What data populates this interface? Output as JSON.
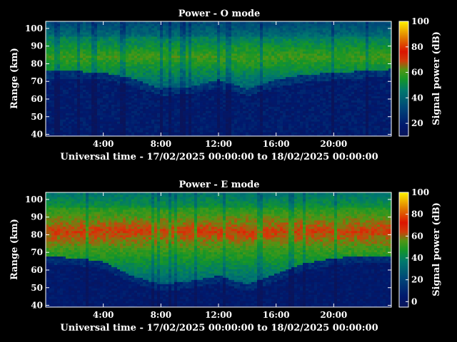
{
  "chart_data": [
    {
      "type": "heatmap",
      "title": "Power - O mode",
      "xlabel": "Universal time - 17/02/2025 00:00:00 to 18/02/2025 00:00:00",
      "ylabel": "Range (km)",
      "xlim_hours": [
        0,
        24
      ],
      "ylim": [
        39,
        104
      ],
      "x_ticks": [
        {
          "value": 4,
          "label": "4:00"
        },
        {
          "value": 8,
          "label": "8:00"
        },
        {
          "value": 12,
          "label": "12:00"
        },
        {
          "value": 16,
          "label": "16:00"
        },
        {
          "value": 20,
          "label": "20:00"
        }
      ],
      "y_ticks": [
        40,
        50,
        60,
        70,
        80,
        90,
        100
      ],
      "colorbar": {
        "label": "Signal power (dB)",
        "range": [
          10,
          100
        ],
        "ticks": [
          20,
          40,
          60,
          80,
          100
        ]
      },
      "lower_edge_km": [
        {
          "t": 0,
          "km": 76
        },
        {
          "t": 2,
          "km": 76
        },
        {
          "t": 4,
          "km": 75
        },
        {
          "t": 6,
          "km": 72
        },
        {
          "t": 8,
          "km": 66
        },
        {
          "t": 10,
          "km": 67
        },
        {
          "t": 12,
          "km": 71
        },
        {
          "t": 14,
          "km": 66
        },
        {
          "t": 16,
          "km": 71
        },
        {
          "t": 18,
          "km": 74
        },
        {
          "t": 20,
          "km": 75
        },
        {
          "t": 22,
          "km": 76
        },
        {
          "t": 24,
          "km": 77
        }
      ],
      "peak_km": 84,
      "peak_db": 60
    },
    {
      "type": "heatmap",
      "title": "Power - E mode",
      "xlabel": "Universal time - 17/02/2025 00:00:00 to 18/02/2025 00:00:00",
      "ylabel": "Range (km)",
      "xlim_hours": [
        0,
        24
      ],
      "ylim": [
        39,
        104
      ],
      "x_ticks": [
        {
          "value": 4,
          "label": "4:00"
        },
        {
          "value": 8,
          "label": "8:00"
        },
        {
          "value": 12,
          "label": "12:00"
        },
        {
          "value": 16,
          "label": "16:00"
        },
        {
          "value": 20,
          "label": "20:00"
        }
      ],
      "y_ticks": [
        40,
        50,
        60,
        70,
        80,
        90,
        100
      ],
      "colorbar": {
        "label": "Signal power (dB)",
        "range": [
          -5,
          100
        ],
        "ticks": [
          0,
          20,
          40,
          60,
          80,
          100
        ]
      },
      "lower_edge_km": [
        {
          "t": 0,
          "km": 68
        },
        {
          "t": 2,
          "km": 67
        },
        {
          "t": 4,
          "km": 65
        },
        {
          "t": 6,
          "km": 57
        },
        {
          "t": 8,
          "km": 52
        },
        {
          "t": 10,
          "km": 54
        },
        {
          "t": 12,
          "km": 57
        },
        {
          "t": 14,
          "km": 52
        },
        {
          "t": 16,
          "km": 58
        },
        {
          "t": 18,
          "km": 64
        },
        {
          "t": 20,
          "km": 67
        },
        {
          "t": 22,
          "km": 68
        },
        {
          "t": 24,
          "km": 68
        }
      ],
      "peak_km": 82,
      "peak_db": 65
    }
  ]
}
